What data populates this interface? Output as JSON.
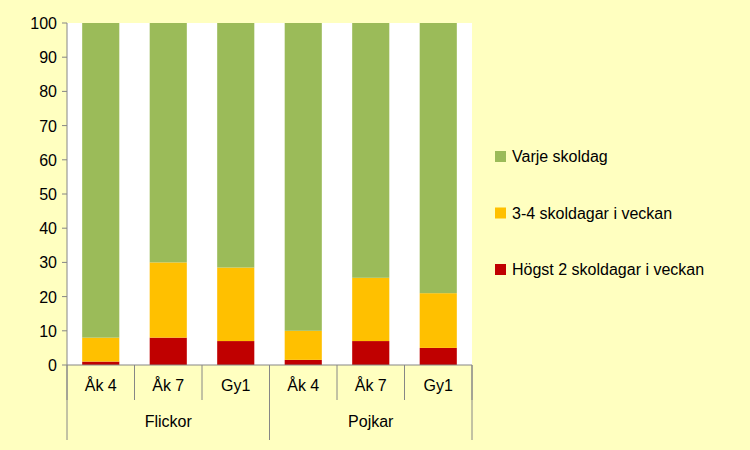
{
  "chart_data": {
    "type": "bar",
    "stacked": true,
    "categories": [
      "Åk 4",
      "Åk 7",
      "Gy1",
      "Åk 4",
      "Åk 7",
      "Gy1"
    ],
    "groups": [
      "Flickor",
      "Pojkar"
    ],
    "series": [
      {
        "name": "Högst 2 skoldagar i veckan",
        "color": "#c00000",
        "values": [
          1,
          8,
          7,
          1.5,
          7,
          5
        ]
      },
      {
        "name": "3-4 skoldagar i veckan",
        "color": "#ffc000",
        "values": [
          7,
          22,
          21.5,
          8.5,
          18.5,
          16
        ]
      },
      {
        "name": "Varje skoldag",
        "color": "#9bbb59",
        "values": [
          92,
          70,
          71.5,
          90,
          74.5,
          79
        ]
      }
    ],
    "ylim": [
      0,
      100
    ],
    "yticks": [
      0,
      10,
      20,
      30,
      40,
      50,
      60,
      70,
      80,
      90,
      100
    ],
    "grid": false,
    "legend": "right"
  }
}
